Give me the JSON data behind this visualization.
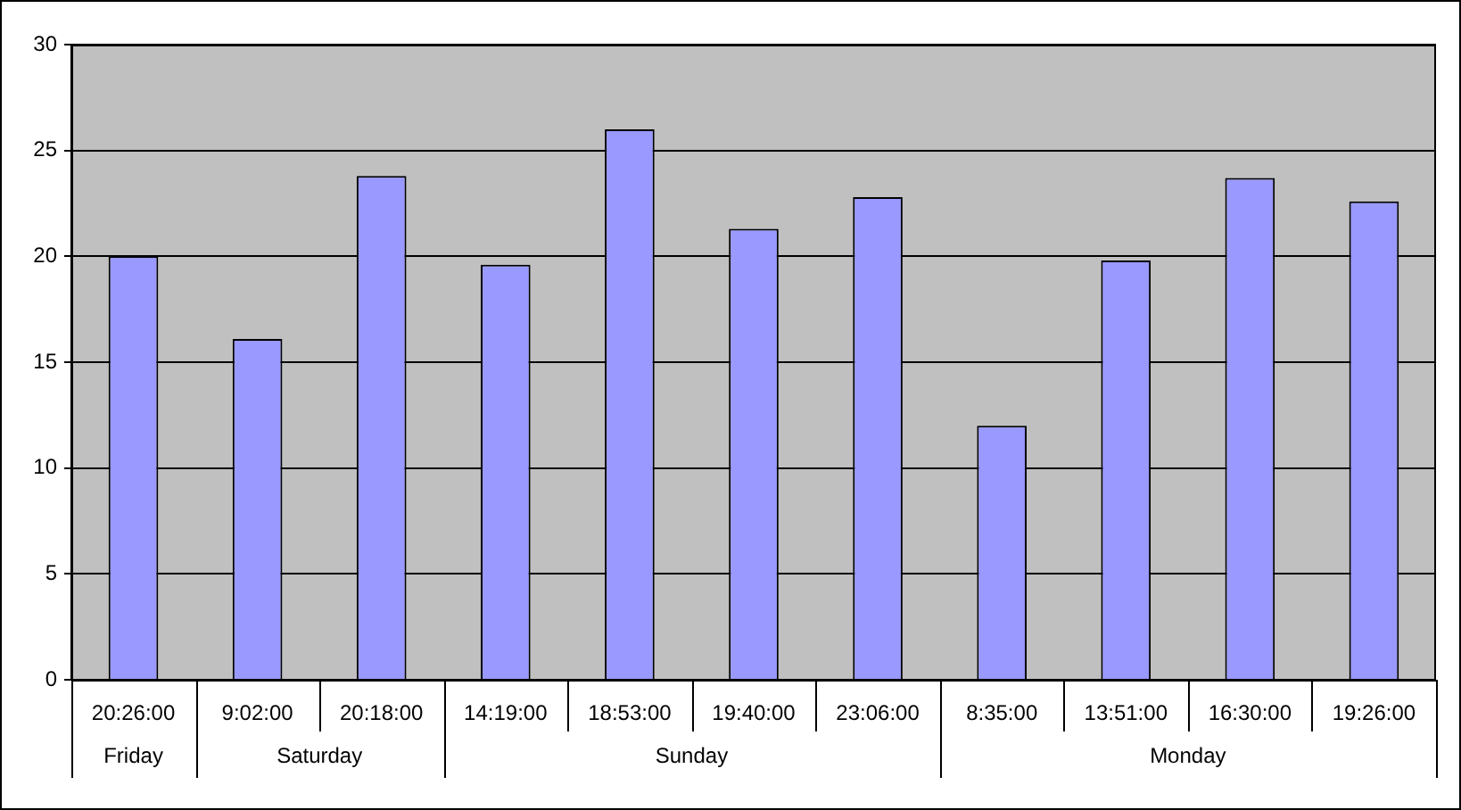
{
  "chart_data": {
    "type": "bar",
    "categories": [
      "20:26:00",
      "9:02:00",
      "20:18:00",
      "14:19:00",
      "18:53:00",
      "19:40:00",
      "23:06:00",
      "8:35:00",
      "13:51:00",
      "16:30:00",
      "19:26:00"
    ],
    "values": [
      20,
      16.1,
      23.8,
      19.6,
      26,
      21.3,
      22.8,
      12,
      19.8,
      23.7,
      22.6
    ],
    "color": "#9999ff",
    "ylim": [
      0,
      30
    ],
    "yticks": [
      0,
      5,
      10,
      15,
      20,
      25,
      30
    ],
    "grid": "y",
    "annotations": [
      "Friday",
      "Saturday",
      "Sunday",
      "Monday"
    ]
  }
}
